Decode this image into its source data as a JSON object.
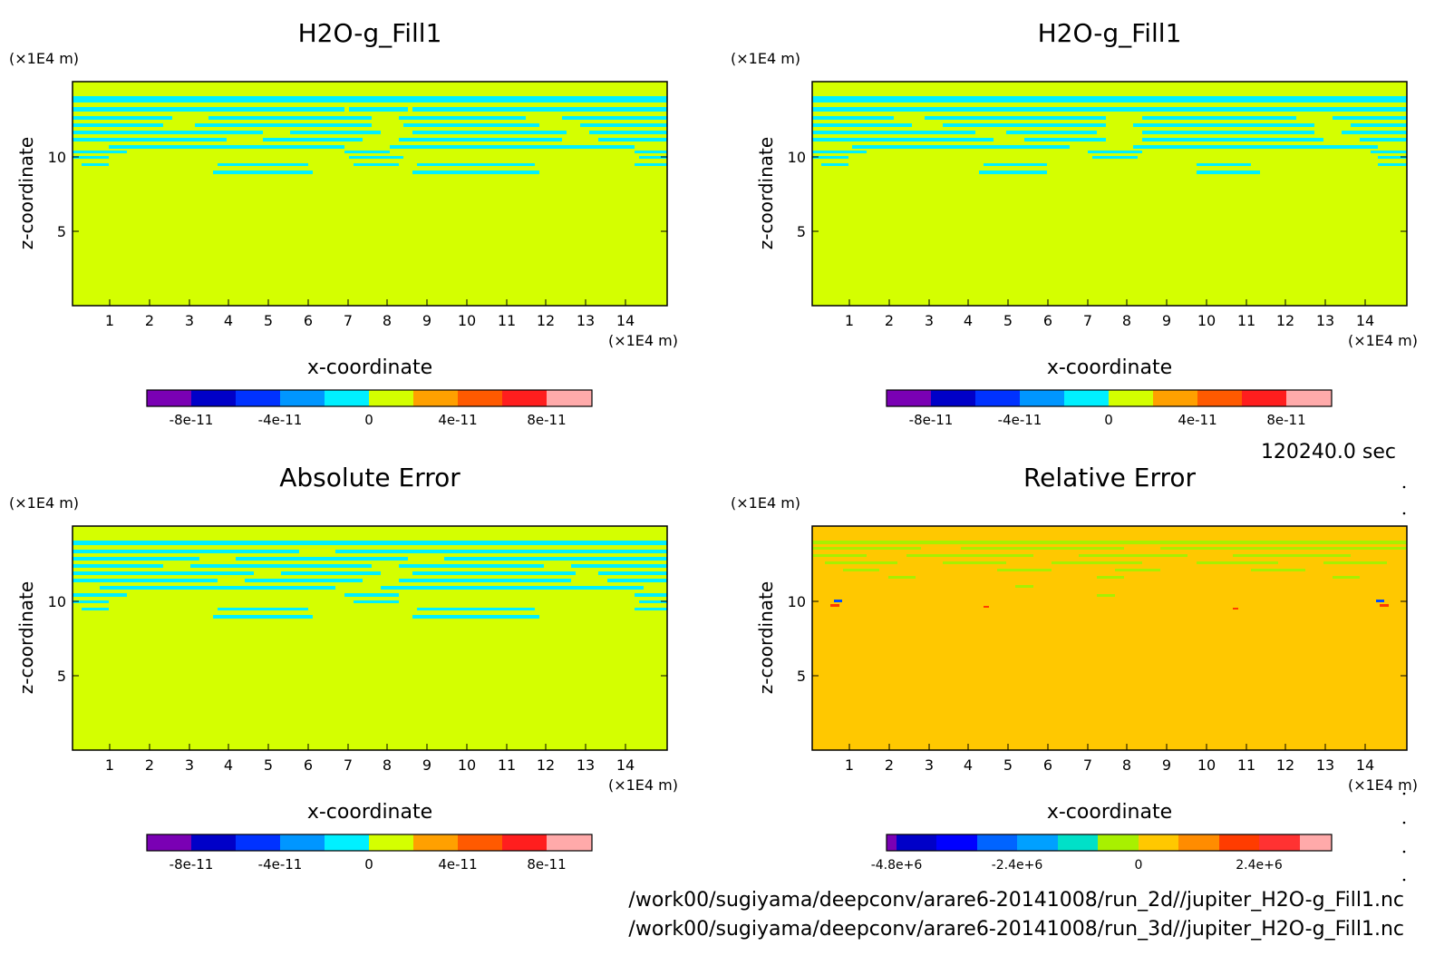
{
  "time_label": "120240.0 sec",
  "file_paths": [
    "/work00/sugiyama/deepconv/arare6-20141008/run_2d//jupiter_H2O-g_Fill1.nc",
    "/work00/sugiyama/deepconv/arare6-20141008/run_3d//jupiter_H2O-g_Fill1.nc"
  ],
  "colors": {
    "main_field": "#d4ff00",
    "band": "#00f0ff",
    "rel_field": "#ffc800",
    "rel_band": "#a8f000"
  },
  "chart_data": [
    {
      "type": "heatmap",
      "title": "H2O-g_Fill1",
      "xlabel": "x-coordinate",
      "ylabel": "z-coordinate",
      "x_unit": "(×1E4 m)",
      "y_unit": "(×1E4 m)",
      "xlim": [
        0,
        15
      ],
      "ylim": [
        0,
        15
      ],
      "x_ticks": [
        "1",
        "2",
        "3",
        "4",
        "5",
        "6",
        "7",
        "8",
        "9",
        "10",
        "11",
        "12",
        "13",
        "14"
      ],
      "y_ticks": [
        "5",
        "10"
      ],
      "colorbar": {
        "colors": [
          "#7a00b4",
          "#0000c8",
          "#0032ff",
          "#0096ff",
          "#00f0ff",
          "#d4ff00",
          "#ffa000",
          "#ff5a00",
          "#ff1e1e",
          "#ffaaaa"
        ],
        "tick_labels": [
          "-8e-11",
          "-4e-11",
          "0",
          "4e-11",
          "8e-11"
        ]
      }
    },
    {
      "type": "heatmap",
      "title": "H2O-g_Fill1",
      "xlabel": "x-coordinate",
      "ylabel": "z-coordinate",
      "x_unit": "(×1E4 m)",
      "y_unit": "(×1E4 m)",
      "xlim": [
        0,
        15
      ],
      "ylim": [
        0,
        15
      ],
      "x_ticks": [
        "1",
        "2",
        "3",
        "4",
        "5",
        "6",
        "7",
        "8",
        "9",
        "10",
        "11",
        "12",
        "13",
        "14"
      ],
      "y_ticks": [
        "5",
        "10"
      ],
      "colorbar": {
        "colors": [
          "#7a00b4",
          "#0000c8",
          "#0032ff",
          "#0096ff",
          "#00f0ff",
          "#d4ff00",
          "#ffa000",
          "#ff5a00",
          "#ff1e1e",
          "#ffaaaa"
        ],
        "tick_labels": [
          "-8e-11",
          "-4e-11",
          "0",
          "4e-11",
          "8e-11"
        ]
      }
    },
    {
      "type": "heatmap",
      "title": "Absolute Error",
      "xlabel": "x-coordinate",
      "ylabel": "z-coordinate",
      "x_unit": "(×1E4 m)",
      "y_unit": "(×1E4 m)",
      "xlim": [
        0,
        15
      ],
      "ylim": [
        0,
        15
      ],
      "x_ticks": [
        "1",
        "2",
        "3",
        "4",
        "5",
        "6",
        "7",
        "8",
        "9",
        "10",
        "11",
        "12",
        "13",
        "14"
      ],
      "y_ticks": [
        "5",
        "10"
      ],
      "colorbar": {
        "colors": [
          "#7a00b4",
          "#0000c8",
          "#0032ff",
          "#0096ff",
          "#00f0ff",
          "#d4ff00",
          "#ffa000",
          "#ff5a00",
          "#ff1e1e",
          "#ffaaaa"
        ],
        "tick_labels": [
          "-8e-11",
          "-4e-11",
          "0",
          "4e-11",
          "8e-11"
        ]
      }
    },
    {
      "type": "heatmap",
      "title": "Relative Error",
      "xlabel": "x-coordinate",
      "ylabel": "z-coordinate",
      "x_unit": "(×1E4 m)",
      "y_unit": "(×1E4 m)",
      "xlim": [
        0,
        15
      ],
      "ylim": [
        0,
        15
      ],
      "x_ticks": [
        "1",
        "2",
        "3",
        "4",
        "5",
        "6",
        "7",
        "8",
        "9",
        "10",
        "11",
        "12",
        "13",
        "14"
      ],
      "y_ticks": [
        "5",
        "10"
      ],
      "colorbar": {
        "colors": [
          "#7a00b4",
          "#0000c8",
          "#0000ff",
          "#0064ff",
          "#00a0ff",
          "#00e0c8",
          "#a8f000",
          "#ffc800",
          "#ff8c00",
          "#ff3c00",
          "#ff3232",
          "#ffaaaa"
        ],
        "tick_labels": [
          "-4.8e+6",
          "-2.4e+6",
          "0",
          "2.4e+6"
        ]
      }
    }
  ]
}
